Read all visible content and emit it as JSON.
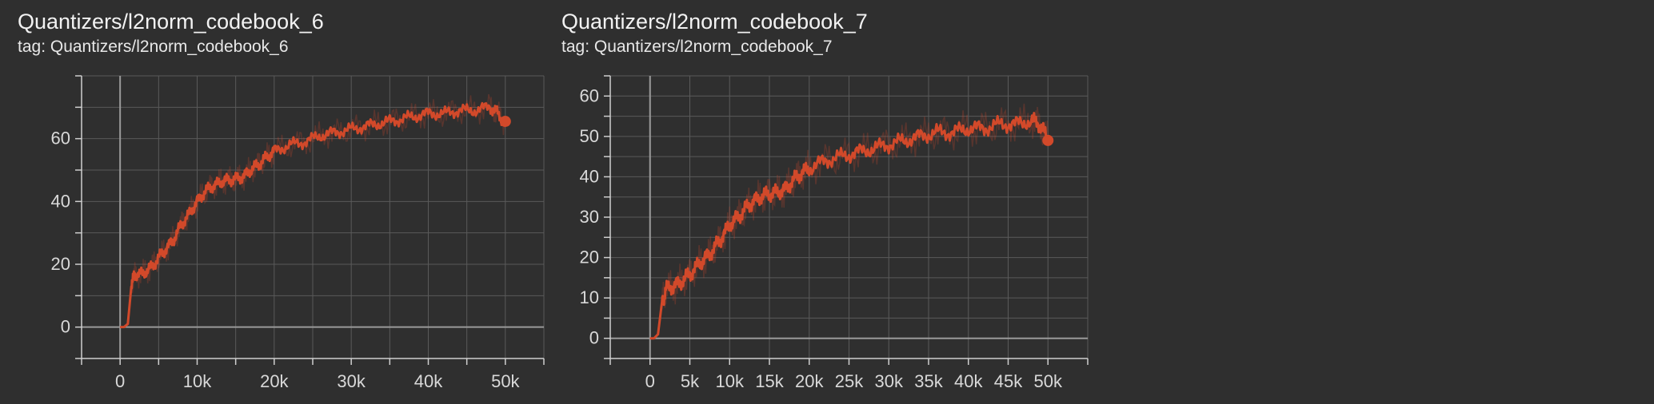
{
  "charts": [
    {
      "title": "Quantizers/l2norm_codebook_6",
      "tag": "tag: Quantizers/l2norm_codebook_6"
    },
    {
      "title": "Quantizers/l2norm_codebook_7",
      "tag": "tag: Quantizers/l2norm_codebook_7"
    }
  ],
  "colors": {
    "background": "#2f2f2f",
    "grid": "#5a5a5a",
    "axis": "#9a9a9a",
    "series": "#d2492a"
  },
  "chart_data": [
    {
      "type": "line",
      "title": "Quantizers/l2norm_codebook_6",
      "xlim": [
        -5000,
        55000
      ],
      "ylim": [
        -10,
        80
      ],
      "x_ticks": [
        0,
        10000,
        20000,
        30000,
        40000,
        50000
      ],
      "x_tick_labels": [
        "0",
        "10k",
        "20k",
        "30k",
        "40k",
        "50k"
      ],
      "x_minor_ticks": [
        -5000,
        5000,
        15000,
        25000,
        35000,
        45000,
        55000
      ],
      "y_ticks": [
        0,
        20,
        40,
        60
      ],
      "y_tick_labels": [
        "0",
        "20",
        "40",
        "60"
      ],
      "y_minor_ticks": [
        -10,
        10,
        30,
        50,
        70,
        80
      ],
      "grid": true,
      "series": [
        {
          "x": [
            0,
            500,
            1000,
            1500,
            2000,
            3000,
            4000,
            5000,
            6000,
            7000,
            8000,
            9000,
            10000,
            11000,
            12000,
            13000,
            14000,
            15000,
            16000,
            17000,
            18000,
            19000,
            20000,
            22000,
            24000,
            26000,
            28000,
            30000,
            32000,
            34000,
            36000,
            38000,
            40000,
            42000,
            44000,
            46000,
            48000,
            49000,
            50000
          ],
          "y": [
            0,
            0,
            1,
            14,
            17,
            17,
            19,
            22,
            25,
            28,
            33,
            36,
            40,
            43,
            45,
            46,
            47,
            47,
            48,
            50,
            52,
            54,
            56,
            58,
            59,
            61,
            62,
            63,
            64,
            65,
            66,
            67,
            68,
            68,
            69,
            69,
            70,
            68,
            65
          ]
        }
      ],
      "end_point": {
        "x": 50000,
        "y": 65.5
      }
    },
    {
      "type": "line",
      "title": "Quantizers/l2norm_codebook_7",
      "xlim": [
        -5000,
        55000
      ],
      "ylim": [
        -5,
        65
      ],
      "x_ticks": [
        0,
        5000,
        10000,
        15000,
        20000,
        25000,
        30000,
        35000,
        40000,
        45000,
        50000
      ],
      "x_tick_labels": [
        "0",
        "5k",
        "10k",
        "15k",
        "20k",
        "25k",
        "30k",
        "35k",
        "40k",
        "45k",
        "50k"
      ],
      "x_minor_ticks": [
        -5000,
        55000
      ],
      "y_ticks": [
        0,
        10,
        20,
        30,
        40,
        50,
        60
      ],
      "y_tick_labels": [
        "0",
        "10",
        "20",
        "30",
        "40",
        "50",
        "60"
      ],
      "y_minor_ticks": [
        -5,
        5,
        15,
        25,
        35,
        45,
        55,
        65
      ],
      "grid": true,
      "series": [
        {
          "x": [
            0,
            500,
            1000,
            1500,
            2000,
            3000,
            4000,
            5000,
            6000,
            7000,
            8000,
            9000,
            10000,
            11000,
            12000,
            13000,
            14000,
            15000,
            16000,
            17000,
            18000,
            19000,
            20000,
            22000,
            24000,
            26000,
            28000,
            30000,
            32000,
            34000,
            36000,
            38000,
            40000,
            42000,
            44000,
            46000,
            48000,
            49000,
            50000
          ],
          "y": [
            0,
            0,
            1,
            9,
            12,
            13,
            14,
            16,
            18,
            20,
            22,
            25,
            28,
            30,
            32,
            34,
            35,
            36,
            36,
            37,
            39,
            41,
            42,
            44,
            45,
            46,
            47,
            48,
            49,
            50,
            51,
            51,
            52,
            52,
            53,
            53,
            54,
            53,
            49
          ]
        }
      ],
      "end_point": {
        "x": 50000,
        "y": 49
      }
    }
  ]
}
